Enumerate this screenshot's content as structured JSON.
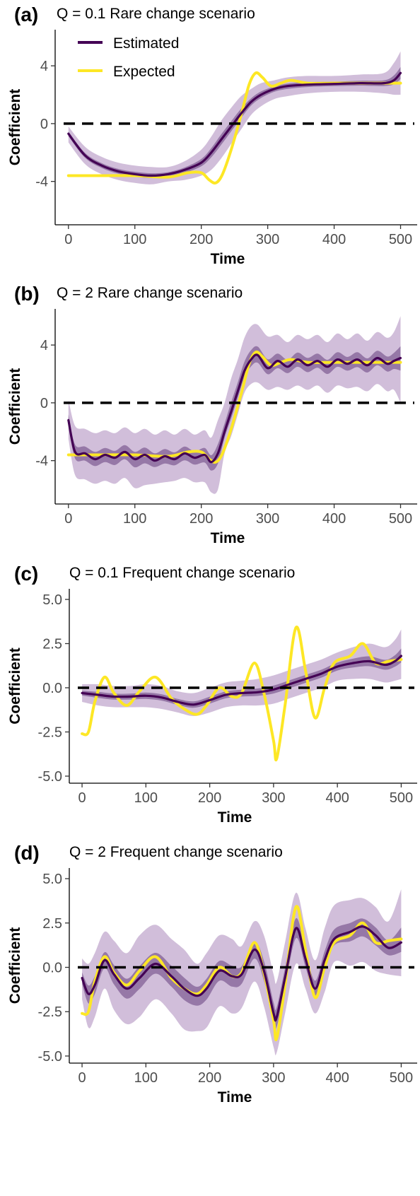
{
  "colors": {
    "estimated": "#440154",
    "expected": "#fde725",
    "band": "#c9b3d4",
    "inner_band": "#7d5a91",
    "zero_line": "#000000",
    "axis": "#000000"
  },
  "legend": {
    "estimated": "Estimated",
    "expected": "Expected"
  },
  "chart_data": [
    {
      "type": "line",
      "label": "(a)",
      "title": "Q = 0.1   Rare change scenario",
      "xlabel": "Time",
      "ylabel": "Coefficient",
      "xlim": [
        -20,
        525
      ],
      "ylim": [
        -7,
        6.5
      ],
      "xticks": [
        0,
        100,
        200,
        300,
        400,
        500
      ],
      "yticks": [
        4,
        0,
        -4
      ],
      "ytick_labels": [
        "4",
        "0",
        "-4"
      ],
      "hline": 0,
      "legend_position": "top-left",
      "series": [
        {
          "name": "Estimated",
          "x": [
            0,
            25,
            50,
            75,
            100,
            125,
            150,
            175,
            200,
            215,
            230,
            245,
            260,
            275,
            290,
            310,
            330,
            360,
            400,
            440,
            475,
            490,
            500
          ],
          "y": [
            -0.7,
            -2.2,
            -2.9,
            -3.3,
            -3.5,
            -3.6,
            -3.5,
            -3.2,
            -2.7,
            -2.0,
            -1.1,
            -0.2,
            0.7,
            1.5,
            2.0,
            2.4,
            2.6,
            2.7,
            2.75,
            2.8,
            2.8,
            3.0,
            3.5
          ],
          "lower": [
            -1.3,
            -2.8,
            -3.5,
            -3.9,
            -4.1,
            -4.2,
            -4.0,
            -3.9,
            -3.6,
            -3.2,
            -2.4,
            -1.4,
            -0.4,
            0.6,
            1.2,
            1.7,
            1.9,
            2.1,
            2.2,
            2.2,
            2.1,
            2.0,
            2.0
          ],
          "upper": [
            -0.2,
            -1.6,
            -2.3,
            -2.7,
            -2.9,
            -3.0,
            -3.0,
            -2.6,
            -1.8,
            -0.9,
            0.2,
            1.1,
            1.9,
            2.4,
            2.8,
            3.0,
            3.2,
            3.3,
            3.3,
            3.4,
            3.5,
            4.2,
            5.0
          ]
        },
        {
          "name": "Expected",
          "x": [
            0,
            50,
            100,
            150,
            180,
            200,
            212,
            222,
            232,
            245,
            260,
            272,
            282,
            292,
            305,
            320,
            335,
            360,
            400,
            450,
            500
          ],
          "y": [
            -3.6,
            -3.6,
            -3.6,
            -3.7,
            -3.4,
            -3.4,
            -3.9,
            -4.1,
            -3.5,
            -1.8,
            0.6,
            2.7,
            3.5,
            3.2,
            2.6,
            2.8,
            3.0,
            2.8,
            2.8,
            2.8,
            2.8
          ]
        }
      ]
    },
    {
      "type": "line",
      "label": "(b)",
      "title": "Q = 2   Rare change scenario",
      "xlabel": "Time",
      "ylabel": "Coefficient",
      "xlim": [
        -20,
        525
      ],
      "ylim": [
        -7,
        6.5
      ],
      "xticks": [
        0,
        100,
        200,
        300,
        400,
        500
      ],
      "yticks": [
        4,
        0,
        -4
      ],
      "ytick_labels": [
        "4",
        "0",
        "-4"
      ],
      "hline": 0,
      "series": [
        {
          "name": "Estimated",
          "x": [
            0,
            10,
            25,
            40,
            55,
            70,
            85,
            100,
            115,
            130,
            145,
            160,
            175,
            190,
            205,
            215,
            225,
            235,
            245,
            255,
            265,
            275,
            285,
            300,
            315,
            330,
            345,
            360,
            375,
            390,
            405,
            420,
            435,
            450,
            465,
            480,
            490,
            500
          ],
          "y": [
            -1.2,
            -3.4,
            -3.5,
            -3.9,
            -3.6,
            -3.8,
            -3.4,
            -3.9,
            -3.6,
            -4.0,
            -3.7,
            -3.9,
            -3.5,
            -3.8,
            -3.6,
            -4.1,
            -3.5,
            -2.0,
            -0.6,
            0.8,
            2.2,
            3.0,
            3.3,
            2.4,
            2.9,
            2.5,
            3.0,
            2.6,
            2.9,
            2.5,
            3.0,
            2.7,
            3.0,
            2.6,
            3.1,
            2.7,
            2.9,
            3.1
          ],
          "lower": [
            -2.5,
            -5.0,
            -5.3,
            -5.6,
            -5.4,
            -5.6,
            -5.2,
            -5.9,
            -5.7,
            -5.6,
            -5.5,
            -5.4,
            -5.2,
            -5.5,
            -5.5,
            -6.2,
            -6.0,
            -3.5,
            -2.3,
            -0.8,
            0.7,
            1.3,
            1.4,
            0.9,
            1.1,
            0.9,
            1.2,
            0.9,
            1.2,
            0.7,
            1.2,
            1.0,
            1.1,
            0.8,
            1.3,
            0.8,
            0.9,
            0.0
          ],
          "upper": [
            0.2,
            -1.6,
            -1.8,
            -2.1,
            -1.9,
            -2.1,
            -1.7,
            -2.1,
            -1.8,
            -2.2,
            -1.9,
            -2.2,
            -1.8,
            -2.2,
            -1.9,
            -2.4,
            -1.2,
            0.0,
            1.7,
            3.0,
            4.5,
            5.3,
            5.4,
            4.6,
            4.7,
            4.2,
            4.7,
            4.4,
            4.7,
            4.2,
            4.8,
            4.4,
            4.8,
            4.3,
            4.9,
            4.5,
            4.9,
            6.0
          ]
        },
        {
          "name": "Expected",
          "x": [
            0,
            50,
            100,
            150,
            180,
            200,
            212,
            222,
            232,
            245,
            260,
            272,
            282,
            292,
            305,
            320,
            335,
            360,
            400,
            450,
            500
          ],
          "y": [
            -3.6,
            -3.6,
            -3.6,
            -3.7,
            -3.4,
            -3.4,
            -3.9,
            -4.1,
            -3.5,
            -1.8,
            0.6,
            2.7,
            3.5,
            3.2,
            2.6,
            2.8,
            3.0,
            2.8,
            2.8,
            2.8,
            2.8
          ]
        }
      ]
    },
    {
      "type": "line",
      "label": "(c)",
      "title": "Q = 0.1   Frequent change scenario",
      "xlabel": "Time",
      "ylabel": "Coefficient",
      "xlim": [
        -20,
        525
      ],
      "ylim": [
        -5.4,
        5.6
      ],
      "xticks": [
        0,
        100,
        200,
        300,
        400,
        500
      ],
      "yticks": [
        5.0,
        2.5,
        0.0,
        -2.5,
        -5.0
      ],
      "ytick_labels": [
        "5.0",
        "2.5",
        "0.0",
        "-2.5",
        "-5.0"
      ],
      "hline": 0,
      "series": [
        {
          "name": "Estimated",
          "x": [
            0,
            25,
            50,
            75,
            100,
            125,
            150,
            175,
            200,
            225,
            250,
            275,
            300,
            325,
            350,
            375,
            400,
            425,
            450,
            475,
            490,
            500
          ],
          "y": [
            -0.3,
            -0.4,
            -0.5,
            -0.5,
            -0.45,
            -0.55,
            -0.8,
            -0.95,
            -0.7,
            -0.4,
            -0.3,
            -0.25,
            -0.1,
            0.2,
            0.5,
            0.8,
            1.2,
            1.4,
            1.5,
            1.3,
            1.5,
            1.8
          ],
          "lower": [
            -0.8,
            -1.0,
            -1.1,
            -1.1,
            -1.1,
            -1.2,
            -1.4,
            -1.6,
            -1.4,
            -1.1,
            -1.0,
            -1.0,
            -0.9,
            -0.6,
            -0.3,
            0.0,
            0.4,
            0.5,
            0.5,
            0.3,
            0.4,
            0.5
          ],
          "upper": [
            0.2,
            0.2,
            0.1,
            0.1,
            0.2,
            0.1,
            -0.2,
            -0.3,
            0.0,
            0.3,
            0.4,
            0.5,
            0.7,
            1.0,
            1.3,
            1.6,
            2.0,
            2.3,
            2.5,
            2.3,
            2.7,
            3.3
          ]
        },
        {
          "name": "Expected",
          "x": [
            0,
            10,
            20,
            35,
            50,
            70,
            90,
            115,
            140,
            160,
            180,
            195,
            215,
            235,
            250,
            270,
            285,
            300,
            305,
            318,
            335,
            350,
            365,
            380,
            395,
            420,
            440,
            460,
            480,
            500
          ],
          "y": [
            -2.6,
            -2.5,
            -0.8,
            0.6,
            -0.3,
            -1.0,
            -0.2,
            0.6,
            -0.6,
            -1.2,
            -1.5,
            -1.0,
            0.0,
            -0.5,
            -0.3,
            1.4,
            -0.3,
            -3.0,
            -4.0,
            -1.0,
            3.4,
            1.0,
            -1.7,
            0.0,
            1.4,
            1.8,
            2.5,
            1.4,
            1.5,
            1.6
          ]
        }
      ]
    },
    {
      "type": "line",
      "label": "(d)",
      "title": "Q = 2   Frequent change scenario",
      "xlabel": "Time",
      "ylabel": "Coefficient",
      "xlim": [
        -20,
        525
      ],
      "ylim": [
        -5.4,
        5.6
      ],
      "xticks": [
        0,
        100,
        200,
        300,
        400,
        500
      ],
      "yticks": [
        5.0,
        2.5,
        0.0,
        -2.5,
        -5.0
      ],
      "ytick_labels": [
        "5.0",
        "2.5",
        "0.0",
        "-2.5",
        "-5.0"
      ],
      "hline": 0,
      "series": [
        {
          "name": "Estimated",
          "x": [
            0,
            10,
            20,
            35,
            50,
            70,
            90,
            115,
            140,
            160,
            180,
            195,
            215,
            235,
            250,
            270,
            285,
            300,
            305,
            318,
            335,
            350,
            365,
            380,
            395,
            420,
            440,
            460,
            480,
            500
          ],
          "y": [
            -0.6,
            -1.5,
            -1.0,
            0.4,
            -0.4,
            -1.2,
            -0.6,
            0.2,
            -0.5,
            -1.2,
            -1.6,
            -1.2,
            -0.2,
            -0.5,
            -0.4,
            1.0,
            -0.2,
            -2.6,
            -2.8,
            -0.6,
            2.2,
            0.5,
            -1.2,
            0.4,
            1.6,
            2.0,
            2.3,
            1.8,
            1.1,
            1.4
          ],
          "lower": [
            -1.8,
            -3.4,
            -2.8,
            -1.2,
            -2.4,
            -3.2,
            -2.8,
            -1.8,
            -2.6,
            -3.5,
            -3.6,
            -3.4,
            -2.2,
            -2.6,
            -2.3,
            -0.8,
            -2.2,
            -4.5,
            -4.8,
            -2.6,
            0.2,
            -1.2,
            -2.6,
            -1.4,
            0.3,
            0.1,
            0.3,
            -0.2,
            -0.4,
            -0.5
          ],
          "upper": [
            0.5,
            0.2,
            0.8,
            2.0,
            1.5,
            0.8,
            1.8,
            2.4,
            1.6,
            1.0,
            0.2,
            0.8,
            1.8,
            1.6,
            1.2,
            2.6,
            1.8,
            -0.4,
            -0.8,
            1.4,
            4.2,
            2.2,
            0.4,
            2.2,
            3.5,
            3.8,
            3.9,
            3.4,
            2.6,
            4.4
          ]
        },
        {
          "name": "Expected",
          "x": [
            0,
            10,
            20,
            35,
            50,
            70,
            90,
            115,
            140,
            160,
            180,
            195,
            215,
            235,
            250,
            270,
            285,
            300,
            305,
            318,
            335,
            350,
            365,
            380,
            395,
            420,
            440,
            460,
            480,
            500
          ],
          "y": [
            -2.6,
            -2.5,
            -0.8,
            0.6,
            -0.3,
            -1.0,
            -0.2,
            0.6,
            -0.6,
            -1.2,
            -1.5,
            -1.0,
            0.0,
            -0.5,
            -0.3,
            1.4,
            -0.3,
            -3.0,
            -4.0,
            -1.0,
            3.4,
            1.0,
            -1.7,
            0.0,
            1.4,
            1.8,
            2.5,
            1.4,
            1.5,
            1.6
          ]
        }
      ]
    }
  ]
}
